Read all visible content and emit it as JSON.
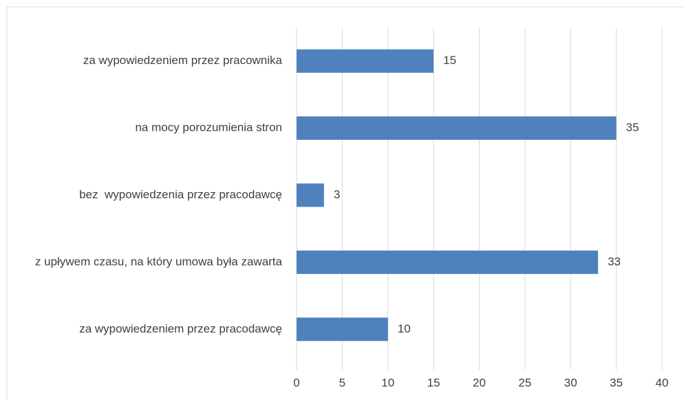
{
  "chart_data": {
    "type": "bar",
    "orientation": "horizontal",
    "categories": [
      "za wypowiedzeniem przez pracownika",
      "na mocy porozumienia stron",
      "bez  wypowiedzenia przez pracodawcę",
      "z upływem czasu, na który umowa była zawarta",
      "za wypowiedzeniem przez pracodawcę"
    ],
    "values": [
      15,
      35,
      3,
      33,
      10
    ],
    "color": "#4f81bd",
    "xlim": [
      0,
      40
    ],
    "xticks": [
      0,
      5,
      10,
      15,
      20,
      25,
      30,
      35,
      40
    ],
    "grid": true
  }
}
